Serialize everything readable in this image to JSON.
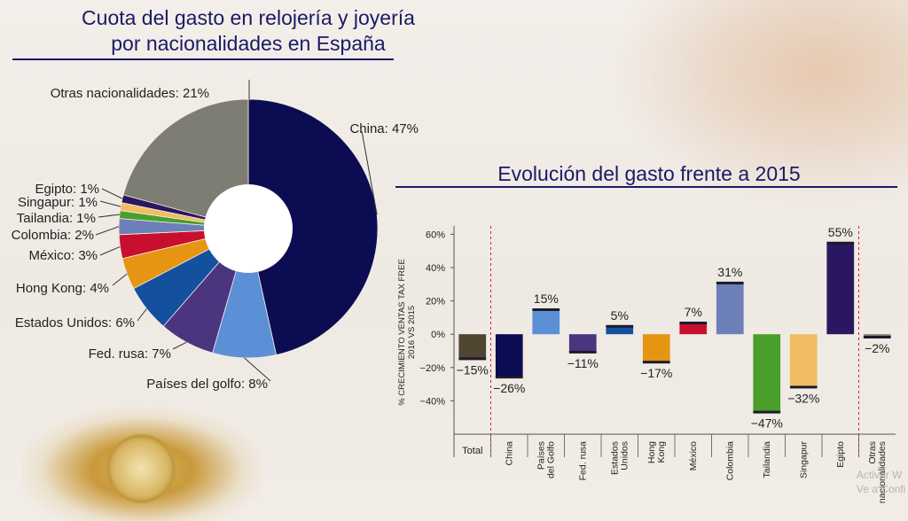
{
  "titles": {
    "pie_line1": "Cuota del gasto en relojería y joyería",
    "pie_line2": "por nacionalidades en España",
    "bar": "Evolución del gasto frente a 2015"
  },
  "watermark": {
    "line1": "Activar W",
    "line2": "Ve a Confi"
  },
  "chart_data": [
    {
      "type": "pie",
      "title": "Cuota del gasto en relojería y joyería por nacionalidades en España",
      "categories": [
        "China",
        "Países del golfo",
        "Fed. rusa",
        "Estados Unidos",
        "Hong Kong",
        "México",
        "Colombia",
        "Tailandia",
        "Singapur",
        "Egipto",
        "Otras nacionalidades"
      ],
      "values": [
        47,
        8,
        7,
        6,
        4,
        3,
        2,
        1,
        1,
        1,
        21
      ],
      "labels": [
        "China: 47%",
        "Países del golfo: 8%",
        "Fed. rusa: 7%",
        "Estados Unidos: 6%",
        "Hong Kong: 4%",
        "México: 3%",
        "Colombia: 2%",
        "Tailandia: 1%",
        "Singapur: 1%",
        "Egipto: 1%",
        "Otras nacionalidades: 21%"
      ],
      "colors": [
        "#0c0c52",
        "#5b8fd6",
        "#4a357e",
        "#13519e",
        "#e59512",
        "#c8102e",
        "#6c7fb8",
        "#4a9e2a",
        "#f0bd62",
        "#2b1760",
        "#7e7d74"
      ],
      "donut": true
    },
    {
      "type": "bar",
      "title": "Evolución del gasto frente a 2015",
      "ylabel_lines": [
        "% CRECIMIENTO VENTAS TAX FREE",
        "2016 VS 2015"
      ],
      "categories": [
        [
          "Total"
        ],
        [
          "China"
        ],
        [
          "Países",
          "del Golfo"
        ],
        [
          "Fed. rusa"
        ],
        [
          "Estados",
          "Unidos"
        ],
        [
          "Hong",
          "Kong"
        ],
        [
          "México"
        ],
        [
          "Colombia"
        ],
        [
          "Tailandia"
        ],
        [
          "Singapur"
        ],
        [
          "Egipto"
        ],
        [
          "Otras",
          "nacionalidades"
        ]
      ],
      "values": [
        -15,
        -26,
        15,
        -11,
        5,
        -17,
        7,
        31,
        -47,
        -32,
        55,
        -2
      ],
      "value_labels": [
        "−15%",
        "−26%",
        "15%",
        "−11%",
        "5%",
        "−17%",
        "7%",
        "31%",
        "−47%",
        "−32%",
        "55%",
        "−2%"
      ],
      "colors": [
        "#4f4530",
        "#0c0c52",
        "#5b8fd6",
        "#4a357e",
        "#13519e",
        "#e59512",
        "#c8102e",
        "#6c7fb8",
        "#4a9e2a",
        "#f0bd62",
        "#2b1760",
        "#7e7d74"
      ],
      "yticks": [
        "60%",
        "40%",
        "20%",
        "0%",
        "−20%",
        "−40%"
      ],
      "ytick_values": [
        60,
        40,
        20,
        0,
        -20,
        -40
      ],
      "ylim": [
        -60,
        65
      ],
      "grid": false
    }
  ]
}
